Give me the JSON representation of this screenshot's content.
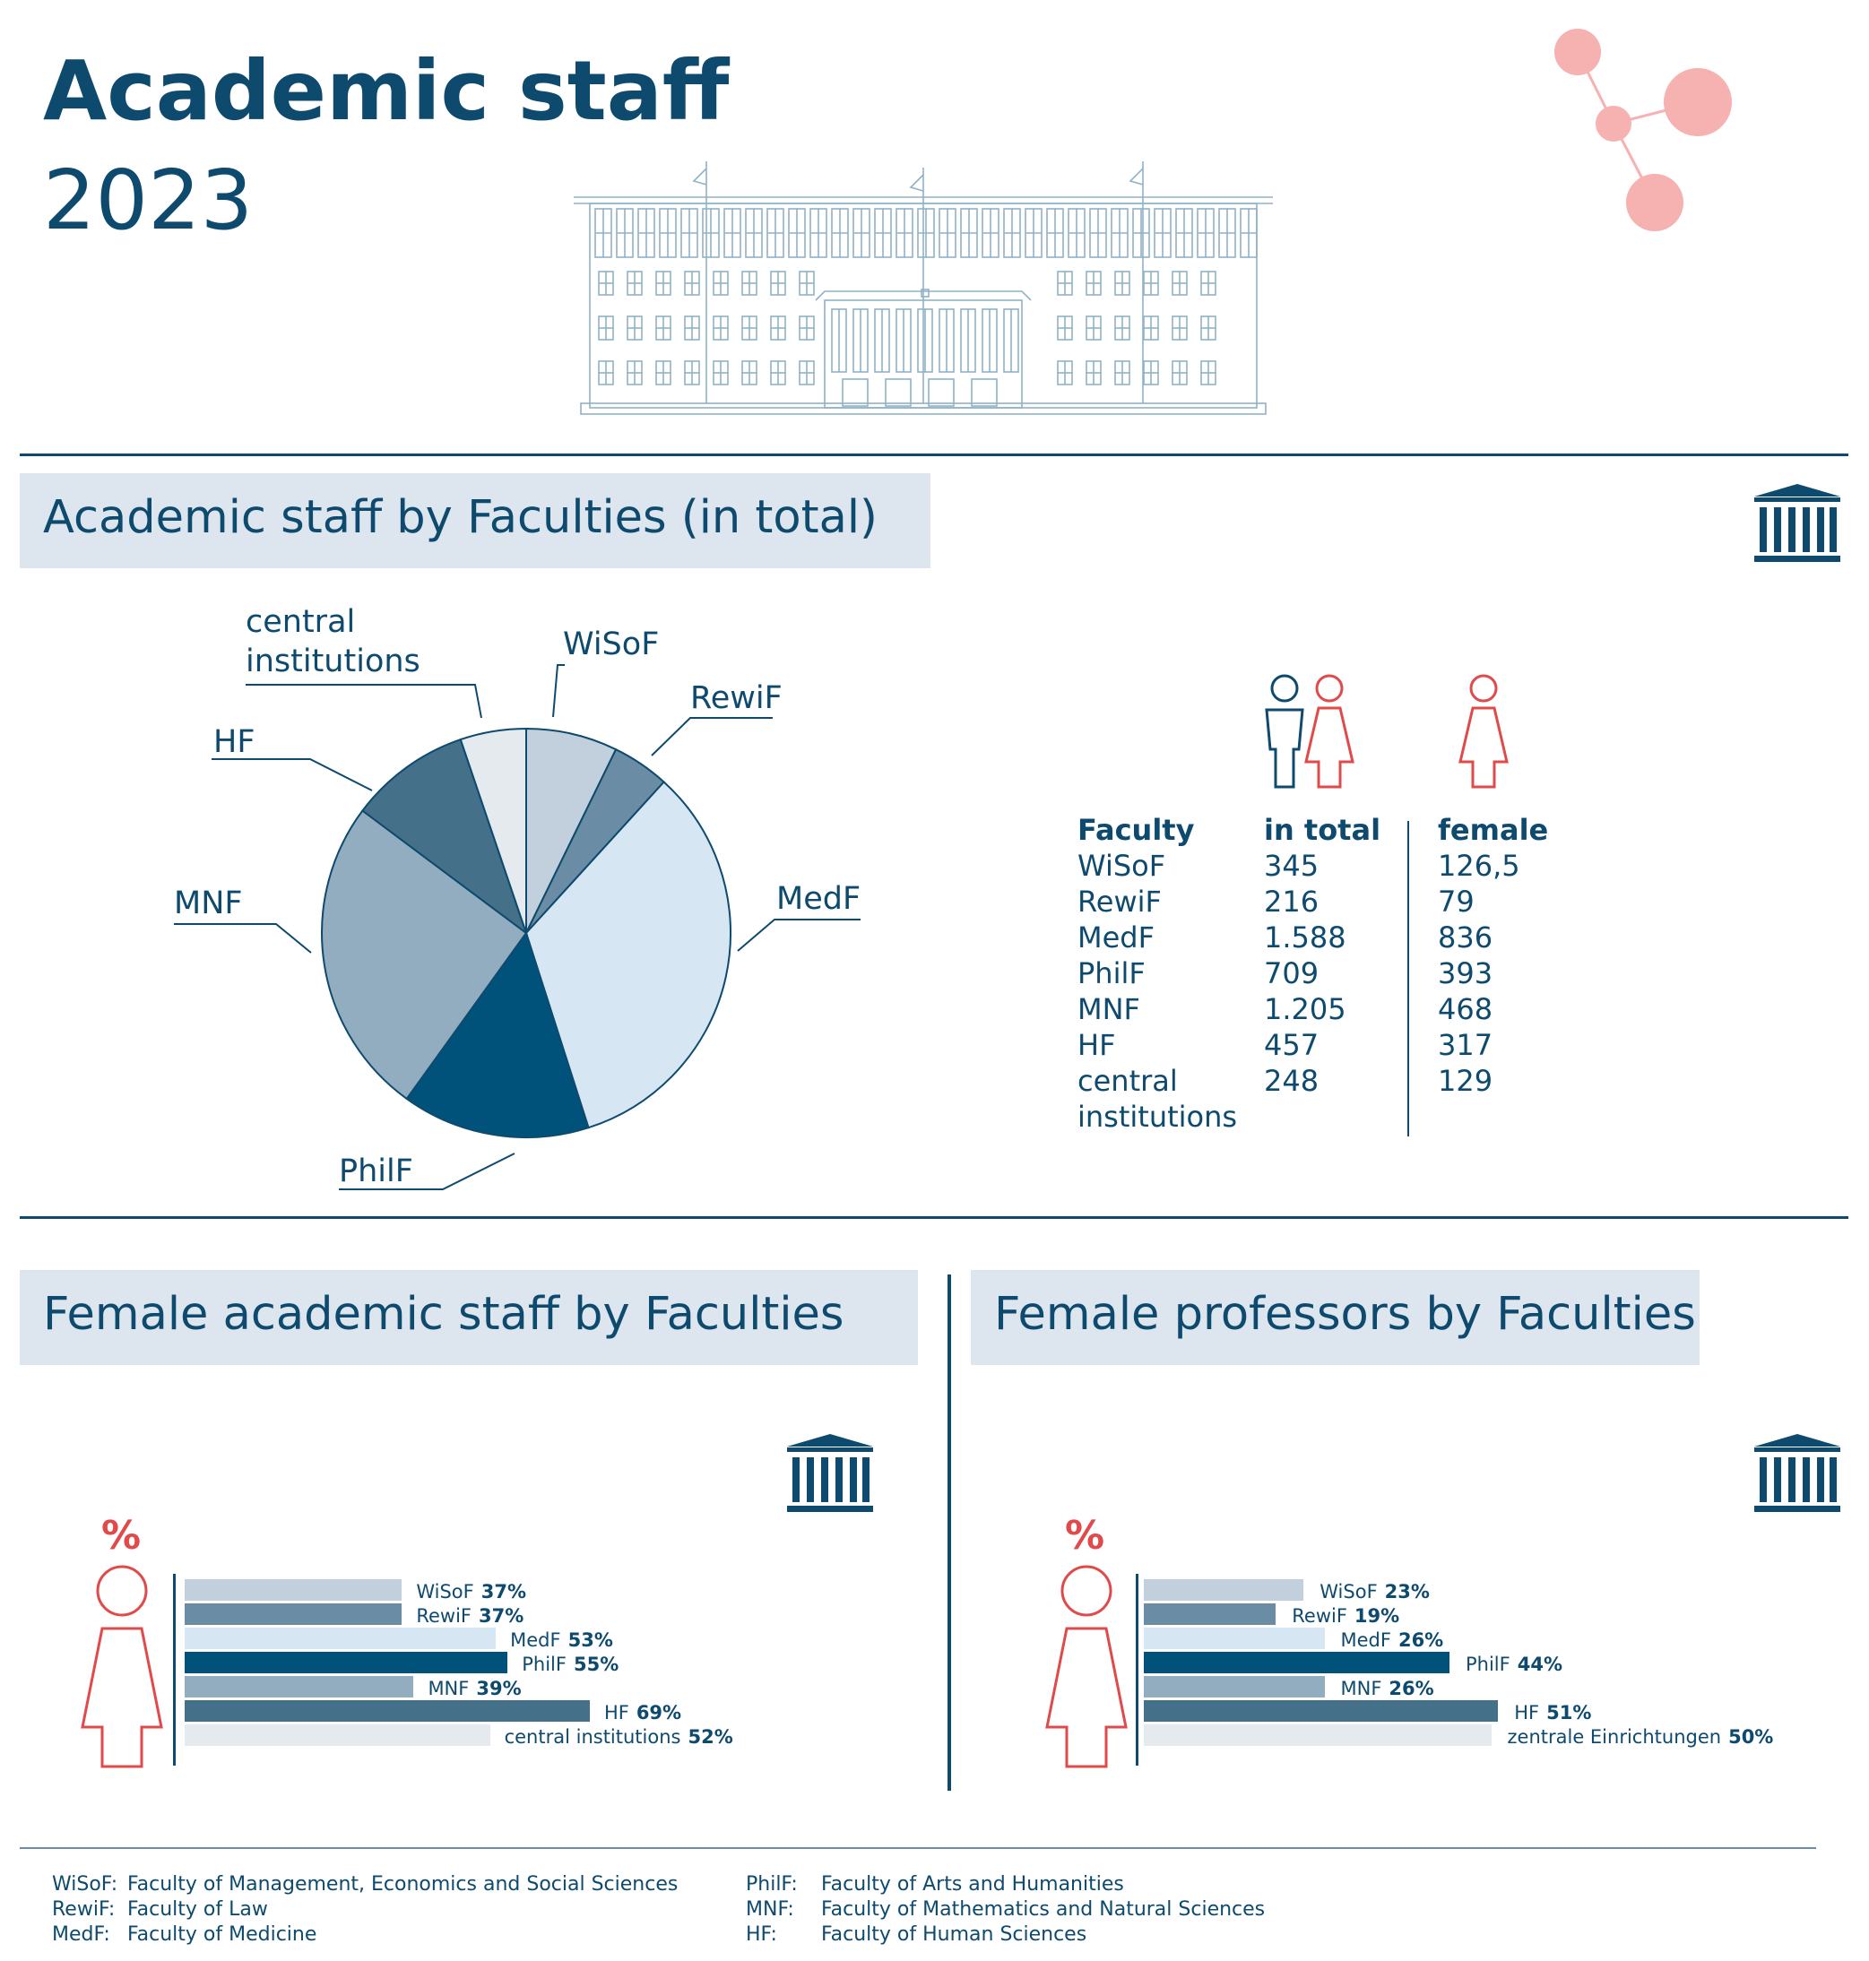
{
  "header": {
    "title": "Academic staff",
    "year": "2023"
  },
  "sections": {
    "total": "Academic staff by Faculties (in total)",
    "female_staff": "Female academic staff by Faculties",
    "female_prof": "Female professors by Faculties"
  },
  "colors": {
    "dark": "#0d4a6e",
    "accent": "#e04a4a",
    "molecule": "#f6b1b1",
    "header_bg": "#dde5ee",
    "building": "#8fb2c6"
  },
  "chart_data": [
    {
      "type": "pie",
      "title": "Academic staff by Faculties (in total)",
      "slices": [
        {
          "label": "WiSoF",
          "value": 345,
          "color": "#c2cfdc"
        },
        {
          "label": "RewiF",
          "value": 216,
          "color": "#6a8ca4"
        },
        {
          "label": "MedF",
          "value": 1588,
          "color": "#d6e6f3"
        },
        {
          "label": "PhilF",
          "value": 709,
          "color": "#00527a"
        },
        {
          "label": "MNF",
          "value": 1205,
          "color": "#92adc0"
        },
        {
          "label": "HF",
          "value": 457,
          "color": "#44708a"
        },
        {
          "label": "central institutions",
          "value": 248,
          "color": "#e4eaee"
        }
      ]
    },
    {
      "type": "table",
      "columns": [
        "Faculty",
        "in total",
        "female"
      ],
      "rows": [
        [
          "WiSoF",
          "345",
          "126,5"
        ],
        [
          "RewiF",
          "216",
          "79"
        ],
        [
          "MedF",
          "1.588",
          "836"
        ],
        [
          "PhilF",
          "709",
          "393"
        ],
        [
          "MNF",
          "1.205",
          "468"
        ],
        [
          "HF",
          "457",
          "317"
        ],
        [
          "central institutions",
          "248",
          "129"
        ]
      ]
    },
    {
      "type": "bar",
      "title": "Female academic staff by Faculties",
      "unit_symbol": "%",
      "categories": [
        "WiSoF",
        "RewiF",
        "MedF",
        "PhilF",
        "MNF",
        "HF",
        "central institutions"
      ],
      "values": [
        37,
        37,
        53,
        55,
        39,
        69,
        52
      ],
      "value_labels": [
        "37%",
        "37%",
        "53%",
        "55%",
        "39%",
        "69%",
        "52%"
      ],
      "colors": [
        "#c2cfdc",
        "#6a8ca4",
        "#d6e6f3",
        "#00527a",
        "#92adc0",
        "#44708a",
        "#e4eaee"
      ]
    },
    {
      "type": "bar",
      "title": "Female professors by Faculties",
      "unit_symbol": "%",
      "categories": [
        "WiSoF",
        "RewiF",
        "MedF",
        "PhilF",
        "MNF",
        "HF",
        "zentrale Einrichtungen"
      ],
      "values": [
        23,
        19,
        26,
        44,
        26,
        51,
        50
      ],
      "value_labels": [
        "23%",
        "19%",
        "26%",
        "44%",
        "26%",
        "51%",
        "50%"
      ],
      "colors": [
        "#c2cfdc",
        "#6a8ca4",
        "#d6e6f3",
        "#00527a",
        "#92adc0",
        "#44708a",
        "#e4eaee"
      ]
    }
  ],
  "legend": [
    {
      "abbr": "WiSoF:",
      "text": "Faculty of Management, Economics and Social Sciences"
    },
    {
      "abbr": "RewiF:",
      "text": "Faculty of Law"
    },
    {
      "abbr": "MedF:",
      "text": "Faculty of Medicine"
    },
    {
      "abbr": "PhilF:",
      "text": "Faculty of Arts and Humanities"
    },
    {
      "abbr": "MNF:",
      "text": "Faculty of Mathematics and Natural Sciences"
    },
    {
      "abbr": "HF:",
      "text": "Faculty of Human Sciences"
    }
  ]
}
